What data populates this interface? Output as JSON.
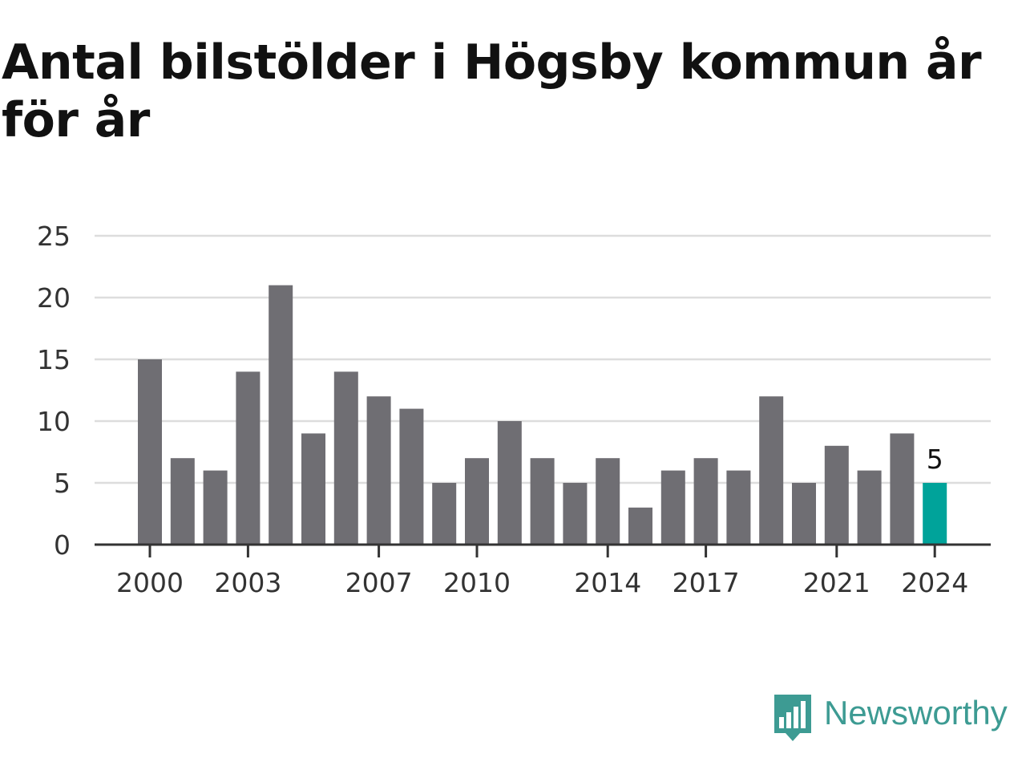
{
  "title": "Antal bilstölder i Högsby kommun år för år",
  "brand": {
    "name": "Newsworthy",
    "logo_icon": "bar-chart-speech-bubble-icon",
    "color": "#3d9b93"
  },
  "chart_data": {
    "type": "bar",
    "categories": [
      2000,
      2001,
      2002,
      2003,
      2004,
      2005,
      2006,
      2007,
      2008,
      2009,
      2010,
      2011,
      2012,
      2013,
      2014,
      2015,
      2016,
      2017,
      2018,
      2019,
      2020,
      2021,
      2022,
      2023,
      2024
    ],
    "values": [
      15,
      7,
      6,
      14,
      21,
      9,
      14,
      12,
      11,
      5,
      7,
      10,
      7,
      5,
      7,
      3,
      6,
      7,
      6,
      12,
      5,
      8,
      6,
      9,
      5
    ],
    "x_tick_labels": [
      "2000",
      "2003",
      "2007",
      "2010",
      "2014",
      "2017",
      "2021",
      "2024"
    ],
    "y_ticks": [
      0,
      5,
      10,
      15,
      20,
      25
    ],
    "ylim": [
      0,
      25
    ],
    "grid": true,
    "highlight": {
      "category": 2024,
      "label": "5",
      "color": "#00a39a"
    },
    "bar_color": "#6f6e73",
    "grid_color": "#dddddd",
    "axis_color": "#333333"
  }
}
